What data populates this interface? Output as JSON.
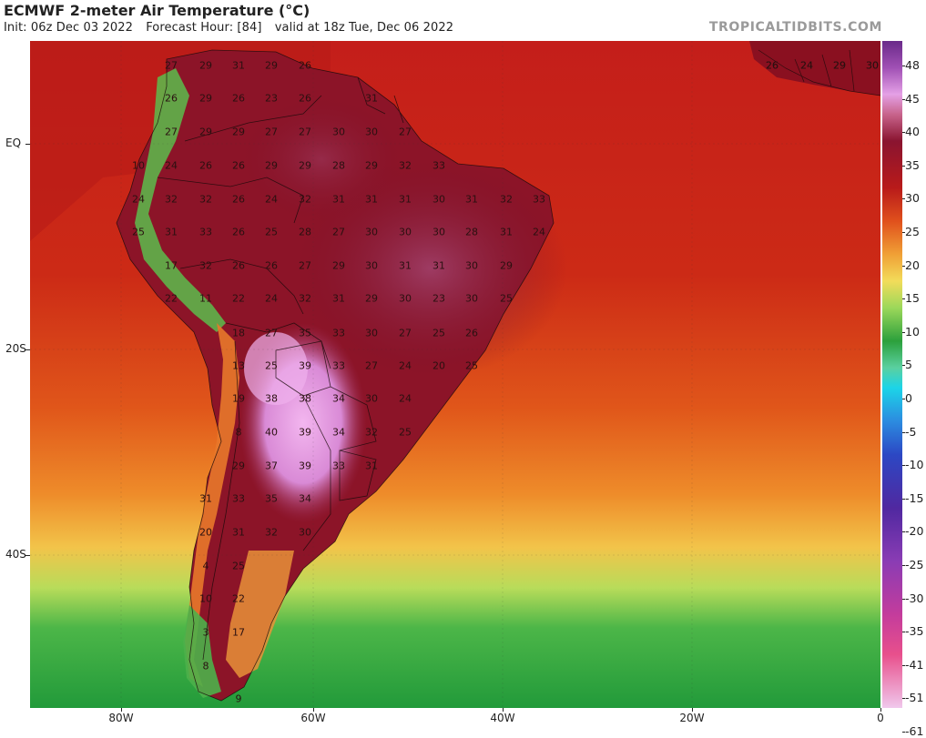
{
  "header": {
    "title": "ECMWF 2-meter Air Temperature (°C)",
    "init": "Init: 06z Dec 03 2022",
    "forecast_hour": "Forecast Hour: [84]",
    "valid": "valid at 18z Tue, Dec 06 2022",
    "brand": "TROPICALTIDBITS.COM"
  },
  "latitude_labels": [
    "EQ",
    "20S",
    "40S"
  ],
  "longitude_labels": [
    "80W",
    "60W",
    "40W",
    "20W",
    "0"
  ],
  "colorbar": {
    "labels": [
      "48",
      "45",
      "40",
      "35",
      "30",
      "25",
      "20",
      "15",
      "10",
      "5",
      "0",
      "-5",
      "-10",
      "-15",
      "-20",
      "-25",
      "-30",
      "-35",
      "-41",
      "-51",
      "-61"
    ],
    "colors": {
      "hot_pink": "#f5b8f0",
      "magenta": "#c864c8",
      "dark_red": "#7a0a1e",
      "red": "#c81e14",
      "orange": "#e8641e",
      "yellow": "#f0d250",
      "light_green": "#a0dc5a",
      "green": "#28a03c",
      "cyan": "#14d2e6",
      "blue": "#2850c8",
      "purple": "#6432a0"
    }
  },
  "station_values": [
    {
      "t": "27"
    },
    {
      "t": "29"
    },
    {
      "t": "31"
    },
    {
      "t": "29"
    },
    {
      "t": "26"
    },
    {
      "t": "26"
    },
    {
      "t": "24"
    },
    {
      "t": "29"
    },
    {
      "t": "30"
    },
    {
      "t": "26"
    },
    {
      "t": "29"
    },
    {
      "t": "26"
    },
    {
      "t": "23"
    },
    {
      "t": "26"
    },
    {
      "t": "31"
    },
    {
      "t": "27"
    },
    {
      "t": "29"
    },
    {
      "t": "29"
    },
    {
      "t": "27"
    },
    {
      "t": "27"
    },
    {
      "t": "30"
    },
    {
      "t": "30"
    },
    {
      "t": "27"
    },
    {
      "t": "10"
    },
    {
      "t": "24"
    },
    {
      "t": "26"
    },
    {
      "t": "26"
    },
    {
      "t": "29"
    },
    {
      "t": "29"
    },
    {
      "t": "28"
    },
    {
      "t": "29"
    },
    {
      "t": "32"
    },
    {
      "t": "33"
    },
    {
      "t": "24"
    },
    {
      "t": "32"
    },
    {
      "t": "32"
    },
    {
      "t": "26"
    },
    {
      "t": "24"
    },
    {
      "t": "32"
    },
    {
      "t": "31"
    },
    {
      "t": "31"
    },
    {
      "t": "31"
    },
    {
      "t": "30"
    },
    {
      "t": "31"
    },
    {
      "t": "32"
    },
    {
      "t": "33"
    },
    {
      "t": "25"
    },
    {
      "t": "31"
    },
    {
      "t": "33"
    },
    {
      "t": "26"
    },
    {
      "t": "25"
    },
    {
      "t": "28"
    },
    {
      "t": "27"
    },
    {
      "t": "30"
    },
    {
      "t": "30"
    },
    {
      "t": "30"
    },
    {
      "t": "28"
    },
    {
      "t": "31"
    },
    {
      "t": "24"
    },
    {
      "t": "17"
    },
    {
      "t": "32"
    },
    {
      "t": "26"
    },
    {
      "t": "26"
    },
    {
      "t": "27"
    },
    {
      "t": "29"
    },
    {
      "t": "30"
    },
    {
      "t": "31"
    },
    {
      "t": "31"
    },
    {
      "t": "30"
    },
    {
      "t": "29"
    },
    {
      "t": "22"
    },
    {
      "t": "11"
    },
    {
      "t": "22"
    },
    {
      "t": "24"
    },
    {
      "t": "32"
    },
    {
      "t": "31"
    },
    {
      "t": "29"
    },
    {
      "t": "30"
    },
    {
      "t": "23"
    },
    {
      "t": "30"
    },
    {
      "t": "25"
    },
    {
      "t": "18"
    },
    {
      "t": "27"
    },
    {
      "t": "35"
    },
    {
      "t": "33"
    },
    {
      "t": "30"
    },
    {
      "t": "27"
    },
    {
      "t": "25"
    },
    {
      "t": "26"
    },
    {
      "t": "13"
    },
    {
      "t": "25"
    },
    {
      "t": "39"
    },
    {
      "t": "33"
    },
    {
      "t": "27"
    },
    {
      "t": "24"
    },
    {
      "t": "20"
    },
    {
      "t": "25"
    },
    {
      "t": "19"
    },
    {
      "t": "38"
    },
    {
      "t": "38"
    },
    {
      "t": "34"
    },
    {
      "t": "30"
    },
    {
      "t": "24"
    },
    {
      "t": "8"
    },
    {
      "t": "40"
    },
    {
      "t": "39"
    },
    {
      "t": "34"
    },
    {
      "t": "32"
    },
    {
      "t": "25"
    },
    {
      "t": "29"
    },
    {
      "t": "37"
    },
    {
      "t": "39"
    },
    {
      "t": "33"
    },
    {
      "t": "31"
    },
    {
      "t": "31"
    },
    {
      "t": "33"
    },
    {
      "t": "35"
    },
    {
      "t": "34"
    },
    {
      "t": "20"
    },
    {
      "t": "31"
    },
    {
      "t": "32"
    },
    {
      "t": "30"
    },
    {
      "t": "4"
    },
    {
      "t": "25"
    },
    {
      "t": "10"
    },
    {
      "t": "22"
    },
    {
      "t": "3"
    },
    {
      "t": "17"
    },
    {
      "t": "8"
    },
    {
      "t": "9"
    },
    {
      "t": "26"
    },
    {
      "t": "24"
    },
    {
      "t": "29"
    },
    {
      "t": "30"
    }
  ]
}
